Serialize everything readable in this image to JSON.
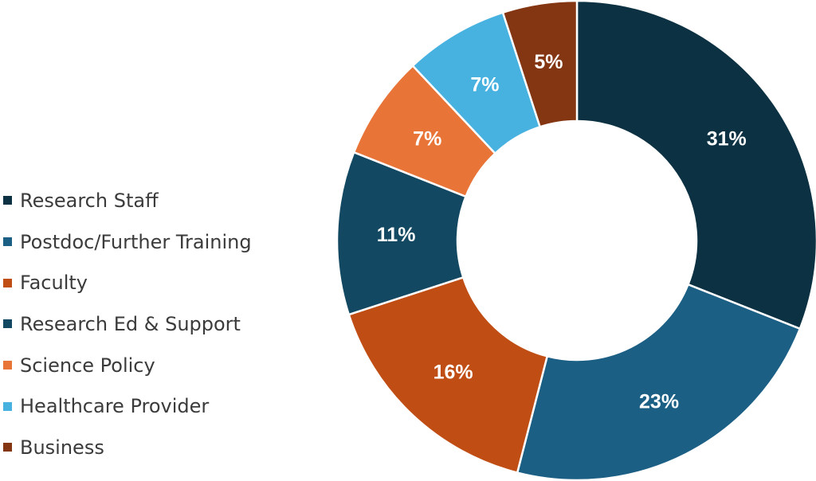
{
  "chart_data": {
    "type": "pie",
    "donut": true,
    "title": "",
    "legend_position": "left",
    "slices": [
      {
        "label": "Research Staff",
        "value": 31,
        "display": "31%",
        "color": "#0b3142"
      },
      {
        "label": "Postdoc/Further Training",
        "value": 23,
        "display": "23%",
        "color": "#1b5f85"
      },
      {
        "label": "Faculty",
        "value": 16,
        "display": "16%",
        "color": "#c04e14"
      },
      {
        "label": "Research Ed & Support",
        "value": 11,
        "display": "11%",
        "color": "#124862"
      },
      {
        "label": "Science Policy",
        "value": 7,
        "display": "7%",
        "color": "#e87437"
      },
      {
        "label": "Healthcare Provider",
        "value": 7,
        "display": "7%",
        "color": "#47b1e0"
      },
      {
        "label": "Business",
        "value": 5,
        "display": "5%",
        "color": "#843511"
      }
    ]
  }
}
